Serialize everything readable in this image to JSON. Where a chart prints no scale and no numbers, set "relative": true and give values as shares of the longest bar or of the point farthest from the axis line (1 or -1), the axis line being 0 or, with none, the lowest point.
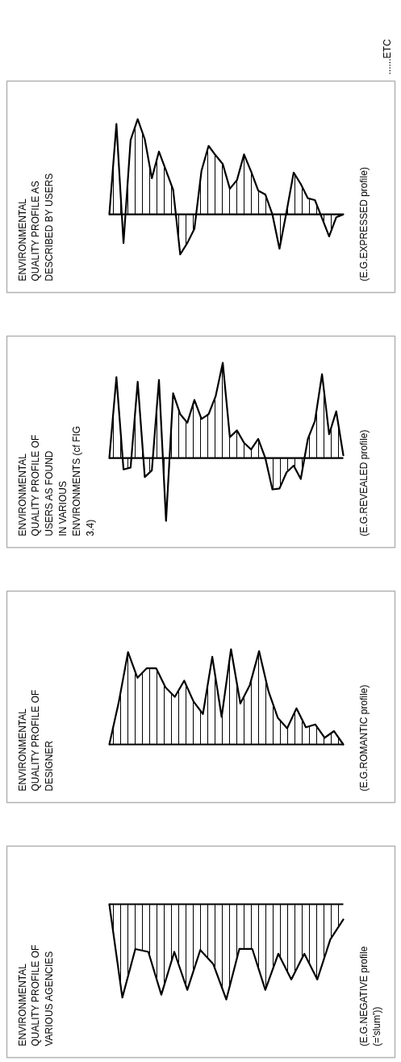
{
  "chart_data": [
    {
      "type": "area",
      "relative": true,
      "title": "ENVIRONMENTAL\nQUALITY PROFILE OF\nVARIOUS AGENCIES",
      "annotations": [
        "(E.G.NEGATIVE profile\n(='slum'))"
      ],
      "color": "#000000",
      "categories": [
        null,
        null,
        null,
        null,
        null,
        null,
        null,
        null,
        null,
        null,
        null,
        null,
        null,
        null,
        null,
        null,
        null,
        null,
        null
      ],
      "values": [
        0,
        -0.98,
        -0.47,
        -0.5,
        -0.95,
        -0.5,
        -0.9,
        -0.48,
        -0.63,
        -1,
        -0.47,
        -0.47,
        -0.9,
        -0.52,
        -0.79,
        -0.52,
        -0.79,
        -0.37,
        -0.16
      ]
    },
    {
      "type": "area",
      "relative": true,
      "title": "ENVIRONMENTAL\nQUALITY PROFILE OF\nDESIGNER",
      "annotations": [
        "(E.G.ROMANTIC profile)"
      ],
      "color": "#000000",
      "categories": [
        null,
        null,
        null,
        null,
        null,
        null,
        null,
        null,
        null,
        null,
        null,
        null,
        null,
        null,
        null,
        null,
        null,
        null,
        null,
        null,
        null,
        null,
        null,
        null,
        null,
        null
      ],
      "values": [
        0,
        0.44,
        0.97,
        0.7,
        0.8,
        0.8,
        0.6,
        0.5,
        0.67,
        0.45,
        0.32,
        0.92,
        0.29,
        1,
        0.43,
        0.62,
        0.98,
        0.56,
        0.28,
        0.17,
        0.38,
        0.18,
        0.21,
        0.07,
        0.14,
        0
      ]
    },
    {
      "type": "area",
      "relative": true,
      "title": "ENVIRONMENTAL\nQUALITY PROFILE OF\nUSERS AS FOUND\nIN VARIOUS\nENVIRONMENTS (cf FIG\n3.4)",
      "annotations": [
        "(E.G.REVEALED profile)"
      ],
      "color": "#000000",
      "categories": [
        null,
        null,
        null,
        null,
        null,
        null,
        null,
        null,
        null,
        null,
        null,
        null,
        null,
        null,
        null,
        null,
        null,
        null,
        null,
        null,
        null,
        null,
        null,
        null,
        null,
        null,
        null,
        null,
        null,
        null,
        null,
        null,
        null,
        null
      ],
      "values": [
        0,
        0.85,
        -0.12,
        -0.1,
        0.8,
        -0.2,
        -0.13,
        0.82,
        -0.66,
        0.68,
        0.46,
        0.37,
        0.61,
        0.41,
        0.46,
        0.65,
        1,
        0.22,
        0.29,
        0.16,
        0.09,
        0.2,
        0,
        -0.33,
        -0.32,
        -0.15,
        -0.08,
        -0.22,
        0.2,
        0.39,
        0.88,
        0.25,
        0.49,
        0.03
      ]
    },
    {
      "type": "area",
      "relative": true,
      "title": "ENVIRONMENTAL\nQUALITY PROFILE AS\nDESCRIBED BY USERS",
      "color": "#000000",
      "annotations": [
        "(E.G.EXPRESSED profile)",
        "......ETC"
      ],
      "categories": [
        null,
        null,
        null,
        null,
        null,
        null,
        null,
        null,
        null,
        null,
        null,
        null,
        null,
        null,
        null,
        null,
        null,
        null,
        null,
        null,
        null,
        null,
        null,
        null,
        null,
        null,
        null,
        null,
        null,
        null,
        null,
        null,
        null,
        null
      ],
      "values": [
        0,
        0.95,
        -0.3,
        0.78,
        1,
        0.79,
        0.38,
        0.66,
        0.46,
        0.26,
        -0.42,
        -0.3,
        -0.15,
        0.46,
        0.72,
        0.62,
        0.53,
        0.27,
        0.36,
        0.63,
        0.45,
        0.25,
        0.21,
        0,
        -0.36,
        0.03,
        0.44,
        0.32,
        0.17,
        0.15,
        -0.04,
        -0.23,
        -0.03,
        0
      ]
    }
  ]
}
